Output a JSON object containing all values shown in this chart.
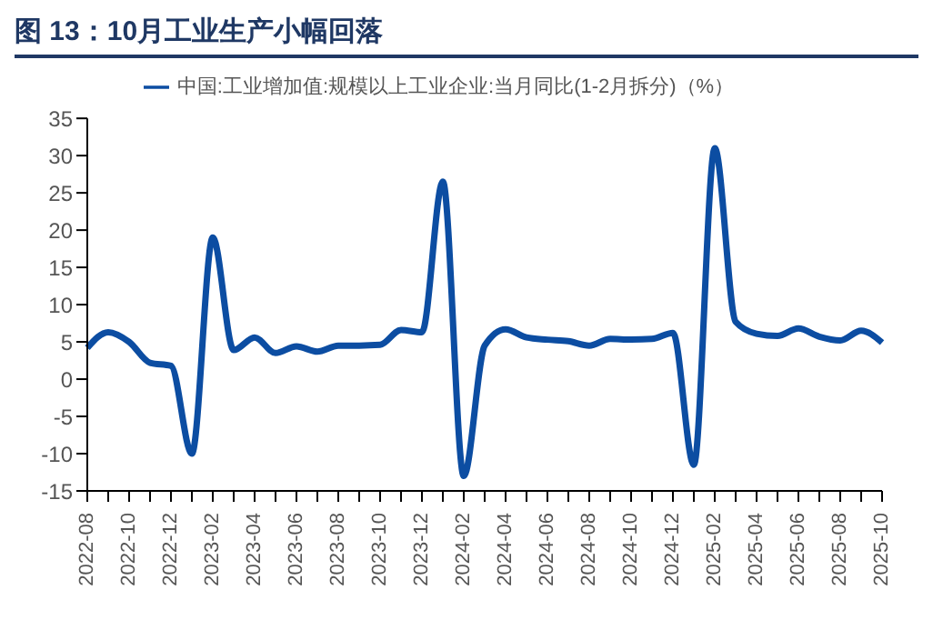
{
  "chart_data": {
    "type": "line",
    "title": "图 13：10月工业生产小幅回落",
    "categories": [
      "2022-08",
      null,
      "2022-10",
      null,
      "2022-12",
      null,
      "2023-02",
      null,
      "2023-04",
      null,
      "2023-06",
      null,
      "2023-08",
      null,
      "2023-10",
      null,
      "2023-12",
      null,
      "2024-02",
      null,
      "2024-04",
      null,
      "2024-06",
      null,
      "2024-08",
      null,
      "2024-10",
      null,
      "2024-12",
      null,
      "2025-02",
      null,
      "2025-04",
      null,
      "2025-06",
      null,
      "2025-08",
      null,
      "2025-10"
    ],
    "series": [
      {
        "name": "中国:工业增加值:规模以上工业企业:当月同比(1-2月拆分)（%）",
        "color": "#0c4da2",
        "values": [
          4.2,
          6.3,
          5.0,
          2.2,
          1.8,
          -10,
          19,
          3.9,
          5.6,
          3.5,
          4.4,
          3.7,
          4.5,
          4.5,
          4.6,
          6.6,
          6.3,
          26.5,
          -13,
          4.5,
          6.7,
          5.6,
          5.3,
          5.1,
          4.5,
          5.4,
          5.3,
          5.4,
          6.2,
          -11.5,
          31,
          7.7,
          6.1,
          5.8,
          6.8,
          5.7,
          5.2,
          6.5,
          4.9
        ]
      }
    ],
    "ylim": [
      -15,
      35
    ],
    "yticks": [
      -15,
      -10,
      -5,
      0,
      5,
      10,
      15,
      20,
      25,
      30,
      35
    ],
    "legend": "top",
    "marker": "none",
    "line_style": "solid"
  }
}
